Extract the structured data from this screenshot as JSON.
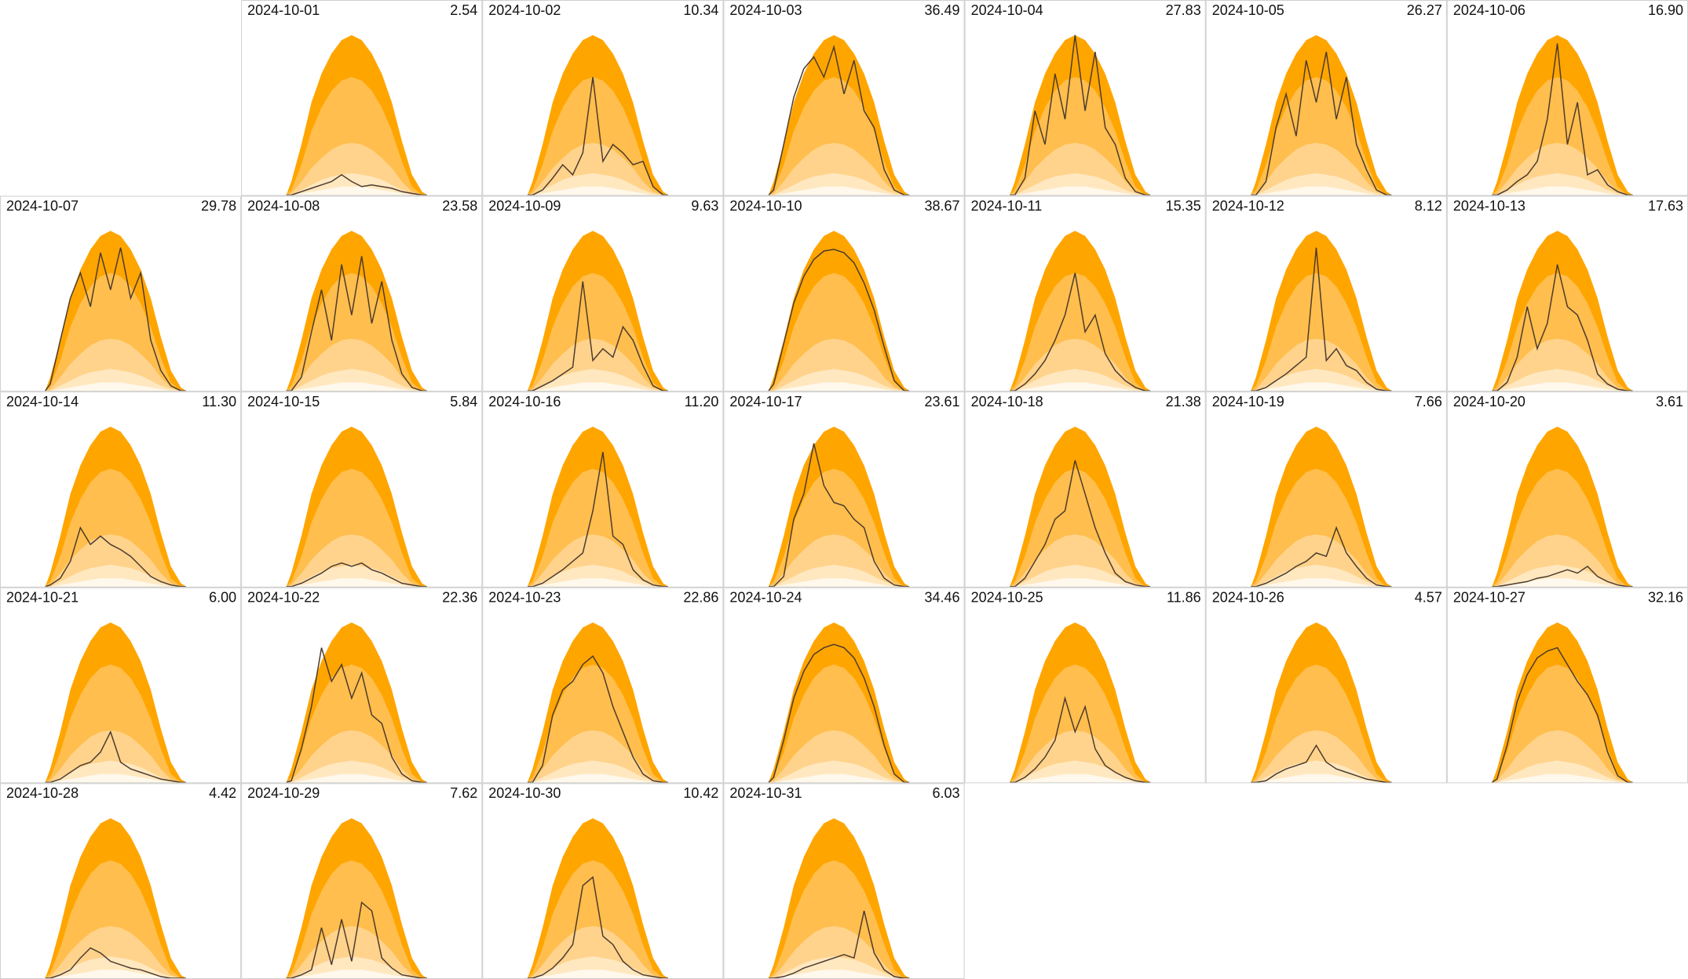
{
  "chart_data": {
    "type": "small-multiples",
    "x": [
      4.5,
      5,
      6,
      7,
      8,
      9,
      10,
      11,
      12,
      13,
      14,
      15,
      16,
      17,
      18,
      18.5
    ],
    "xlim": [
      0,
      24
    ],
    "ylim": [
      0,
      100
    ],
    "envelope": [
      {
        "color": "#ffa500",
        "values": [
          0,
          8,
          30,
          55,
          72,
          84,
          92,
          95,
          92,
          84,
          72,
          55,
          32,
          12,
          2,
          0
        ]
      },
      {
        "color": "#ffbe4d",
        "values": [
          0,
          3,
          18,
          38,
          52,
          62,
          68,
          70,
          68,
          62,
          52,
          38,
          20,
          5,
          0,
          0
        ]
      },
      {
        "color": "#ffd38c",
        "values": [
          0,
          1,
          8,
          16,
          22,
          27,
          30,
          31,
          30,
          27,
          22,
          16,
          8,
          2,
          0,
          0
        ]
      },
      {
        "color": "#ffe8c0",
        "values": [
          0,
          0,
          3,
          6,
          9,
          11,
          12,
          13,
          12,
          11,
          9,
          6,
          3,
          1,
          0,
          0
        ]
      },
      {
        "color": "#fff8ec",
        "values": [
          0,
          0,
          1,
          2,
          3,
          4,
          5,
          5,
          5,
          4,
          3,
          2,
          1,
          0,
          0,
          0
        ]
      }
    ],
    "line_color": "#4d3b2e",
    "series": [
      {
        "name": "2024-10-01",
        "value": 2.54,
        "values": [
          0,
          0,
          2,
          4,
          6,
          8,
          12,
          8,
          5,
          6,
          5,
          4,
          2,
          1,
          0,
          0
        ]
      },
      {
        "name": "2024-10-02",
        "value": 10.34,
        "values": [
          0,
          0,
          3,
          10,
          18,
          12,
          25,
          70,
          20,
          30,
          25,
          18,
          20,
          5,
          0,
          0
        ]
      },
      {
        "name": "2024-10-03",
        "value": 36.49,
        "values": [
          0,
          3,
          30,
          58,
          75,
          82,
          70,
          88,
          60,
          80,
          50,
          40,
          15,
          3,
          0,
          0
        ]
      },
      {
        "name": "2024-10-04",
        "value": 27.83,
        "values": [
          0,
          0,
          10,
          50,
          30,
          72,
          45,
          95,
          50,
          85,
          40,
          30,
          10,
          2,
          0,
          0
        ]
      },
      {
        "name": "2024-10-05",
        "value": 26.27,
        "values": [
          0,
          0,
          8,
          40,
          60,
          35,
          80,
          55,
          85,
          45,
          70,
          30,
          15,
          3,
          0,
          0
        ]
      },
      {
        "name": "2024-10-06",
        "value": 16.9,
        "value_label": "16.90",
        "values": [
          0,
          0,
          3,
          8,
          12,
          20,
          45,
          90,
          30,
          55,
          12,
          15,
          6,
          2,
          0,
          0
        ]
      },
      {
        "name": "2024-10-07",
        "value": 29.78,
        "values": [
          0,
          4,
          30,
          55,
          70,
          50,
          82,
          60,
          85,
          55,
          70,
          30,
          12,
          3,
          0,
          0
        ]
      },
      {
        "name": "2024-10-08",
        "value": 23.58,
        "values": [
          0,
          0,
          8,
          35,
          60,
          30,
          75,
          45,
          80,
          40,
          65,
          30,
          10,
          2,
          0,
          0
        ]
      },
      {
        "name": "2024-10-09",
        "value": 9.63,
        "values": [
          0,
          0,
          3,
          6,
          10,
          14,
          65,
          18,
          25,
          20,
          38,
          30,
          15,
          3,
          0,
          0
        ]
      },
      {
        "name": "2024-10-10",
        "value": 38.67,
        "values": [
          0,
          4,
          28,
          52,
          68,
          78,
          83,
          84,
          82,
          76,
          64,
          48,
          26,
          6,
          0,
          0
        ]
      },
      {
        "name": "2024-10-11",
        "value": 15.35,
        "values": [
          0,
          0,
          4,
          10,
          18,
          30,
          45,
          70,
          35,
          45,
          22,
          12,
          6,
          2,
          0,
          0
        ]
      },
      {
        "name": "2024-10-12",
        "value": 8.12,
        "values": [
          0,
          0,
          2,
          6,
          10,
          15,
          20,
          85,
          18,
          25,
          15,
          12,
          5,
          1,
          0,
          0
        ]
      },
      {
        "name": "2024-10-13",
        "value": 17.63,
        "values": [
          0,
          0,
          5,
          20,
          50,
          25,
          40,
          75,
          50,
          45,
          30,
          10,
          4,
          1,
          0,
          0
        ]
      },
      {
        "name": "2024-10-14",
        "value": 11.3,
        "value_label": "11.30",
        "values": [
          0,
          1,
          5,
          15,
          35,
          25,
          30,
          25,
          22,
          18,
          12,
          6,
          3,
          1,
          0,
          0
        ]
      },
      {
        "name": "2024-10-15",
        "value": 5.84,
        "values": [
          0,
          0,
          2,
          5,
          8,
          12,
          14,
          12,
          14,
          10,
          8,
          5,
          2,
          1,
          0,
          0
        ]
      },
      {
        "name": "2024-10-16",
        "value": 11.2,
        "value_label": "11.20",
        "values": [
          0,
          0,
          2,
          6,
          10,
          15,
          20,
          45,
          80,
          30,
          25,
          10,
          4,
          1,
          0,
          0
        ]
      },
      {
        "name": "2024-10-17",
        "value": 23.61,
        "values": [
          0,
          0,
          6,
          40,
          55,
          85,
          60,
          50,
          48,
          40,
          35,
          15,
          5,
          1,
          0,
          0
        ]
      },
      {
        "name": "2024-10-18",
        "value": 21.38,
        "values": [
          0,
          0,
          5,
          15,
          25,
          40,
          45,
          75,
          55,
          35,
          20,
          8,
          3,
          1,
          0,
          0
        ]
      },
      {
        "name": "2024-10-19",
        "value": 7.66,
        "values": [
          0,
          0,
          2,
          5,
          8,
          12,
          15,
          20,
          18,
          35,
          20,
          12,
          5,
          1,
          0,
          0
        ]
      },
      {
        "name": "2024-10-20",
        "value": 3.61,
        "values": [
          0,
          0,
          1,
          2,
          3,
          5,
          6,
          8,
          10,
          8,
          12,
          6,
          3,
          1,
          0,
          0
        ]
      },
      {
        "name": "2024-10-21",
        "value": 6,
        "value_label": "6.00",
        "values": [
          0,
          0,
          2,
          6,
          10,
          12,
          18,
          30,
          12,
          8,
          6,
          4,
          2,
          1,
          0,
          0
        ]
      },
      {
        "name": "2024-10-22",
        "value": 22.36,
        "values": [
          0,
          1,
          20,
          45,
          80,
          60,
          70,
          50,
          65,
          40,
          35,
          15,
          5,
          1,
          0,
          0
        ]
      },
      {
        "name": "2024-10-23",
        "value": 22.86,
        "values": [
          0,
          0,
          10,
          40,
          55,
          60,
          70,
          75,
          65,
          45,
          30,
          15,
          5,
          1,
          0,
          0
        ]
      },
      {
        "name": "2024-10-24",
        "value": 34.46,
        "values": [
          0,
          3,
          25,
          50,
          66,
          76,
          80,
          82,
          80,
          74,
          62,
          45,
          22,
          5,
          0,
          0
        ]
      },
      {
        "name": "2024-10-25",
        "value": 11.86,
        "values": [
          0,
          0,
          3,
          8,
          15,
          25,
          50,
          30,
          45,
          20,
          10,
          6,
          3,
          1,
          0,
          0
        ]
      },
      {
        "name": "2024-10-26",
        "value": 4.57,
        "values": [
          0,
          0,
          1,
          5,
          8,
          10,
          12,
          22,
          12,
          8,
          6,
          4,
          2,
          1,
          0,
          0
        ]
      },
      {
        "name": "2024-10-27",
        "value": 32.16,
        "values": [
          0,
          2,
          22,
          48,
          64,
          74,
          78,
          80,
          70,
          60,
          52,
          40,
          18,
          4,
          0,
          0
        ]
      },
      {
        "name": "2024-10-28",
        "value": 4.42,
        "values": [
          0,
          0,
          2,
          5,
          12,
          18,
          15,
          10,
          8,
          6,
          5,
          3,
          1,
          0,
          0,
          0
        ]
      },
      {
        "name": "2024-10-29",
        "value": 7.62,
        "values": [
          0,
          0,
          2,
          5,
          30,
          8,
          35,
          10,
          45,
          40,
          12,
          6,
          2,
          1,
          0,
          0
        ]
      },
      {
        "name": "2024-10-30",
        "value": 10.42,
        "values": [
          0,
          0,
          2,
          6,
          12,
          20,
          55,
          60,
          25,
          20,
          10,
          5,
          2,
          1,
          0,
          0
        ]
      },
      {
        "name": "2024-10-31",
        "value": 6.03,
        "values": [
          0,
          0,
          1,
          3,
          6,
          8,
          10,
          12,
          14,
          12,
          40,
          15,
          5,
          1,
          0,
          0
        ]
      }
    ]
  }
}
